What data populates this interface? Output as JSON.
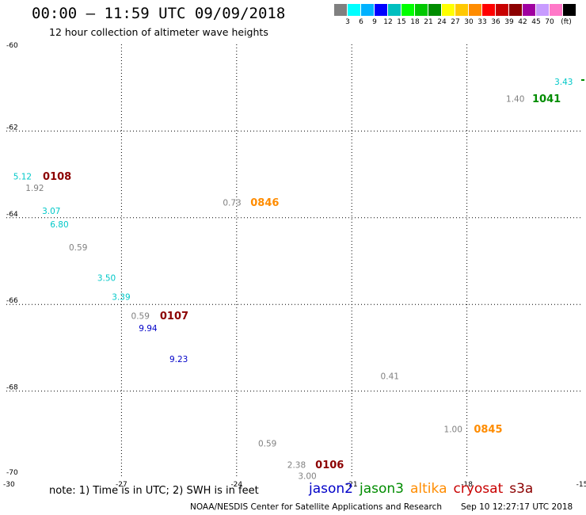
{
  "header": {
    "title": "00:00 – 11:59 UTC 09/09/2018",
    "subtitle": "12 hour collection of altimeter wave heights"
  },
  "colorbar": {
    "colors": [
      "#808080",
      "#00ffff",
      "#00b2ff",
      "#0000ff",
      "#00bfbf",
      "#00ff00",
      "#00c800",
      "#008c00",
      "#ffff00",
      "#ffc800",
      "#ff8c00",
      "#ff0000",
      "#c80000",
      "#8c0000",
      "#a000a0",
      "#c89bff",
      "#ff78c8",
      "#000000"
    ],
    "labels": [
      "3",
      "6",
      "9",
      "12",
      "15",
      "18",
      "21",
      "24",
      "27",
      "30",
      "33",
      "36",
      "39",
      "42",
      "45",
      "70",
      "(ft)"
    ]
  },
  "map": {
    "lon_range": [
      -30,
      -15
    ],
    "lat_range": [
      -70,
      -60
    ],
    "lon_ticks": [
      {
        "value": -27,
        "label": "-27"
      },
      {
        "value": -24,
        "label": "-24"
      },
      {
        "value": -21,
        "label": "-21"
      },
      {
        "value": -18,
        "label": "-18"
      },
      {
        "value": -15,
        "label": "-15"
      }
    ],
    "lat_ticks": [
      {
        "value": -62,
        "label": "-62"
      },
      {
        "value": -64,
        "label": "-64"
      },
      {
        "value": -66,
        "label": "-66"
      },
      {
        "value": -68,
        "label": "-68"
      },
      {
        "value": -70,
        "label": "-70"
      }
    ],
    "corner_top_label": "-60",
    "corner_bottom_label": "-30",
    "gridlines": true,
    "observations": [
      {
        "text": "3.43",
        "lon": -15.72,
        "lat": -60.88,
        "color": "#00c8c8"
      },
      {
        "text": "1.40",
        "lon": -16.98,
        "lat": -61.27,
        "color": "#808080"
      },
      {
        "text": "1041",
        "lon": -16.3,
        "lat": -61.27,
        "color": "#008c00",
        "bold": true
      },
      {
        "text": "5.12",
        "lon": -29.82,
        "lat": -63.06,
        "color": "#00c8c8"
      },
      {
        "text": "0108",
        "lon": -29.05,
        "lat": -63.06,
        "color": "#8c0000",
        "bold": true
      },
      {
        "text": "1.92",
        "lon": -29.5,
        "lat": -63.33,
        "color": "#808080"
      },
      {
        "text": "0.73",
        "lon": -24.36,
        "lat": -63.67,
        "color": "#808080"
      },
      {
        "text": "0846",
        "lon": -23.64,
        "lat": -63.67,
        "color": "#ff8c00",
        "bold": true
      },
      {
        "text": "3.07",
        "lon": -29.07,
        "lat": -63.86,
        "color": "#00c8c8"
      },
      {
        "text": "6.80",
        "lon": -28.86,
        "lat": -64.17,
        "color": "#00c8c8"
      },
      {
        "text": "0.59",
        "lon": -28.37,
        "lat": -64.7,
        "color": "#808080"
      },
      {
        "text": "3.50",
        "lon": -27.63,
        "lat": -65.4,
        "color": "#00c8c8"
      },
      {
        "text": "3.39",
        "lon": -27.25,
        "lat": -65.84,
        "color": "#00c8c8"
      },
      {
        "text": "0.59",
        "lon": -26.75,
        "lat": -66.28,
        "color": "#808080"
      },
      {
        "text": "0107",
        "lon": -26.0,
        "lat": -66.28,
        "color": "#8c0000",
        "bold": true
      },
      {
        "text": "9.94",
        "lon": -26.55,
        "lat": -66.56,
        "color": "#0000c8"
      },
      {
        "text": "9.23",
        "lon": -25.75,
        "lat": -67.28,
        "color": "#0000c8"
      },
      {
        "text": "0.41",
        "lon": -20.25,
        "lat": -67.67,
        "color": "#808080"
      },
      {
        "text": "1.00",
        "lon": -18.6,
        "lat": -68.89,
        "color": "#808080"
      },
      {
        "text": "0845",
        "lon": -17.82,
        "lat": -68.89,
        "color": "#ff8c00",
        "bold": true
      },
      {
        "text": "0.59",
        "lon": -23.44,
        "lat": -69.22,
        "color": "#808080"
      },
      {
        "text": "2.38",
        "lon": -22.68,
        "lat": -69.72,
        "color": "#808080"
      },
      {
        "text": "0106",
        "lon": -21.95,
        "lat": -69.72,
        "color": "#8c0000",
        "bold": true
      },
      {
        "text": "3.00",
        "lon": -22.4,
        "lat": -69.97,
        "color": "#808080"
      }
    ]
  },
  "footer": {
    "note": "note:  1) Time is in UTC; 2) SWH is in feet",
    "satellites": [
      {
        "name": "jason2",
        "color": "#0000c8"
      },
      {
        "name": "jason3",
        "color": "#008c00"
      },
      {
        "name": "altika",
        "color": "#ff8c00"
      },
      {
        "name": "cryosat",
        "color": "#c80000"
      },
      {
        "name": "s3a",
        "color": "#8c0000"
      }
    ],
    "credit": "NOAA/NESDIS Center for Satellite Applications and Research",
    "timestamp": "Sep 10 12:27:17 UTC 2018"
  }
}
